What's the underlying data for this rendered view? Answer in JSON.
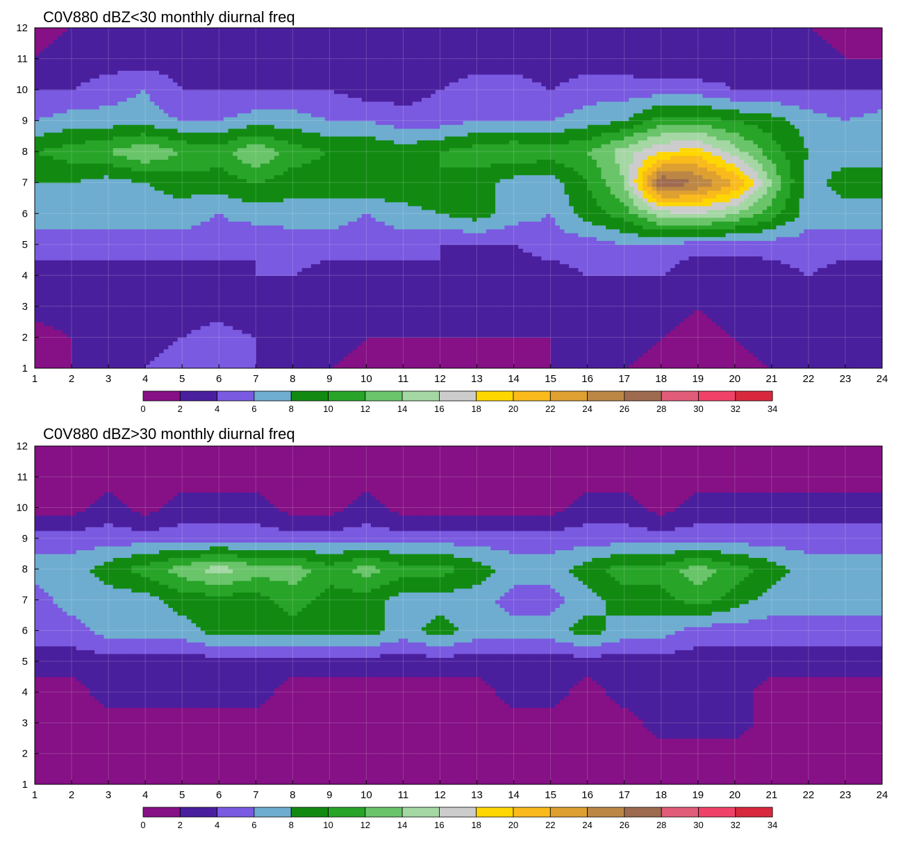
{
  "chart_data": [
    {
      "type": "heatmap",
      "subtype": "filled-contour",
      "title": "C0V880 dBZ<30 monthly diurnal freq",
      "xlabel": "",
      "ylabel": "",
      "xlim": [
        1,
        24
      ],
      "ylim": [
        1,
        12
      ],
      "x_ticks": [
        "1",
        "2",
        "3",
        "4",
        "5",
        "6",
        "7",
        "8",
        "9",
        "10",
        "11",
        "12",
        "13",
        "14",
        "15",
        "16",
        "17",
        "18",
        "19",
        "20",
        "21",
        "22",
        "23",
        "24"
      ],
      "y_ticks": [
        "1",
        "2",
        "3",
        "4",
        "5",
        "6",
        "7",
        "8",
        "9",
        "10",
        "11",
        "12"
      ],
      "grid": true,
      "colorbar": {
        "placement": "bottom",
        "levels": [
          "0",
          "2",
          "4",
          "6",
          "8",
          "10",
          "12",
          "14",
          "16",
          "18",
          "20",
          "22",
          "24",
          "26",
          "28",
          "30",
          "32",
          "34"
        ],
        "colors": [
          "#861085",
          "#4a1f9d",
          "#7a5ae0",
          "#6eadd0",
          "#128a12",
          "#28a428",
          "#6ac46a",
          "#a4d7a4",
          "#cccccc",
          "#ffd700",
          "#f9bb1c",
          "#dea031",
          "#bc8745",
          "#9e6b50",
          "#e05c78",
          "#f04268",
          "#d8283e"
        ]
      },
      "x": [
        1,
        2,
        3,
        4,
        5,
        6,
        7,
        8,
        9,
        10,
        11,
        12,
        13,
        14,
        15,
        16,
        17,
        18,
        19,
        20,
        21,
        22,
        23,
        24
      ],
      "y": [
        1,
        2,
        3,
        4,
        5,
        6,
        7,
        8,
        9,
        10,
        11,
        12
      ],
      "z": [
        [
          1,
          2,
          3,
          4,
          5,
          5,
          4,
          3,
          2,
          1,
          1,
          1,
          1,
          1,
          2,
          2,
          2,
          1,
          2,
          1,
          2,
          3,
          2,
          3
        ],
        [
          1,
          2,
          3,
          3,
          4,
          5,
          4,
          3,
          3,
          2,
          2,
          2,
          2,
          2,
          2,
          3,
          3,
          2,
          1,
          2,
          3,
          3,
          2,
          3
        ],
        [
          3,
          3,
          2,
          3,
          3,
          3,
          2,
          3,
          3,
          2,
          2,
          2,
          2,
          3,
          3,
          3,
          2,
          3,
          2,
          3,
          2,
          4,
          3,
          3
        ],
        [
          3,
          3,
          3,
          3,
          3,
          3,
          4,
          4,
          3,
          3,
          3,
          4,
          3,
          3,
          3,
          4,
          4,
          4,
          2,
          2,
          3,
          4,
          3,
          3
        ],
        [
          5,
          5,
          5,
          5,
          5,
          5,
          4,
          5,
          5,
          5,
          5,
          4,
          4,
          4,
          5,
          5,
          6,
          6,
          5,
          5,
          5,
          5,
          5,
          5
        ],
        [
          7,
          7,
          7,
          7,
          7,
          6,
          7,
          7,
          7,
          6,
          7,
          8,
          9,
          7,
          6,
          9,
          11,
          15,
          16,
          14,
          11,
          7,
          7,
          7
        ],
        [
          8,
          8,
          7,
          8,
          9,
          9,
          10,
          9,
          9,
          10,
          10,
          10,
          9,
          7,
          7,
          10,
          14,
          28,
          26,
          22,
          14,
          7,
          9,
          9
        ],
        [
          10,
          11,
          12,
          14,
          12,
          11,
          14,
          11,
          10,
          10,
          9,
          10,
          11,
          12,
          11,
          12,
          15,
          18,
          19,
          15,
          11,
          8,
          7,
          7
        ],
        [
          6,
          7,
          7,
          7,
          6,
          6,
          7,
          7,
          6,
          6,
          5,
          5,
          6,
          6,
          6,
          7,
          8,
          11,
          11,
          10,
          9,
          7,
          6,
          7
        ],
        [
          4,
          4,
          5,
          6,
          4,
          4,
          4,
          4,
          4,
          3,
          3,
          4,
          5,
          5,
          4,
          5,
          5,
          5,
          5,
          4,
          4,
          4,
          4,
          4
        ],
        [
          2,
          3,
          3,
          3,
          3,
          3,
          3,
          3,
          3,
          3,
          3,
          3,
          3,
          3,
          3,
          3,
          3,
          2,
          2,
          3,
          3,
          3,
          2,
          2
        ],
        [
          1,
          2,
          2,
          2,
          2,
          2,
          2,
          2,
          2,
          2,
          2,
          2,
          2,
          2,
          2,
          2,
          2,
          2,
          2,
          2,
          2,
          2,
          1,
          1
        ]
      ]
    },
    {
      "type": "heatmap",
      "subtype": "filled-contour",
      "title": "C0V880 dBZ>30 monthly diurnal freq",
      "xlabel": "",
      "ylabel": "",
      "xlim": [
        1,
        24
      ],
      "ylim": [
        1,
        12
      ],
      "x_ticks": [
        "1",
        "2",
        "3",
        "4",
        "5",
        "6",
        "7",
        "8",
        "9",
        "10",
        "11",
        "12",
        "13",
        "14",
        "15",
        "16",
        "17",
        "18",
        "19",
        "20",
        "21",
        "22",
        "23",
        "24"
      ],
      "y_ticks": [
        "1",
        "2",
        "3",
        "4",
        "5",
        "6",
        "7",
        "8",
        "9",
        "10",
        "11",
        "12"
      ],
      "grid": true,
      "colorbar": {
        "placement": "bottom",
        "levels": [
          "0",
          "2",
          "4",
          "6",
          "8",
          "10",
          "12",
          "14",
          "16",
          "18",
          "20",
          "22",
          "24",
          "26",
          "28",
          "30",
          "32",
          "34"
        ],
        "colors": [
          "#861085",
          "#4a1f9d",
          "#7a5ae0",
          "#6eadd0",
          "#128a12",
          "#28a428",
          "#6ac46a",
          "#a4d7a4",
          "#cccccc",
          "#ffd700",
          "#f9bb1c",
          "#dea031",
          "#bc8745",
          "#9e6b50",
          "#e05c78",
          "#f04268",
          "#d8283e"
        ]
      },
      "x": [
        1,
        2,
        3,
        4,
        5,
        6,
        7,
        8,
        9,
        10,
        11,
        12,
        13,
        14,
        15,
        16,
        17,
        18,
        19,
        20,
        21,
        22,
        23,
        24
      ],
      "y": [
        1,
        2,
        3,
        4,
        5,
        6,
        7,
        8,
        9,
        10,
        11,
        12
      ],
      "z": [
        [
          1,
          1,
          1,
          1,
          1,
          1,
          1,
          1,
          1,
          1,
          1,
          1,
          1,
          1,
          1,
          1,
          1,
          1,
          1,
          1,
          1,
          1,
          1,
          1
        ],
        [
          1,
          1,
          1,
          1,
          1,
          1,
          1,
          1,
          1,
          1,
          1,
          1,
          1,
          1,
          1,
          1,
          1,
          1,
          1,
          1,
          1,
          1,
          1,
          1
        ],
        [
          1,
          1,
          1,
          1,
          1,
          1,
          1,
          1,
          1,
          1,
          1,
          1,
          1,
          1,
          1,
          1,
          1,
          3,
          3,
          3,
          1,
          1,
          1,
          1
        ],
        [
          1,
          1,
          3,
          3,
          3,
          3,
          3,
          1,
          1,
          1,
          1,
          1,
          1,
          3,
          3,
          1,
          3,
          3,
          3,
          3,
          1,
          1,
          1,
          1
        ],
        [
          3,
          3,
          3,
          3,
          3,
          3,
          3,
          3,
          3,
          3,
          3,
          3,
          3,
          3,
          3,
          3,
          3,
          3,
          3,
          3,
          3,
          3,
          3,
          3
        ],
        [
          5,
          5,
          7,
          7,
          7,
          9,
          9,
          9,
          9,
          9,
          7,
          9,
          7,
          7,
          7,
          9,
          7,
          7,
          5,
          5,
          5,
          5,
          5,
          5
        ],
        [
          5,
          7,
          7,
          7,
          9,
          9,
          9,
          11,
          9,
          9,
          7,
          7,
          7,
          5,
          5,
          7,
          9,
          9,
          11,
          9,
          7,
          7,
          7,
          7
        ],
        [
          7,
          7,
          9,
          11,
          13,
          15,
          13,
          13,
          11,
          13,
          11,
          11,
          9,
          7,
          7,
          9,
          11,
          11,
          13,
          11,
          9,
          7,
          7,
          7
        ],
        [
          5,
          5,
          5,
          5,
          5,
          5,
          5,
          5,
          5,
          5,
          5,
          5,
          5,
          5,
          5,
          5,
          5,
          5,
          5,
          5,
          5,
          5,
          5,
          5
        ],
        [
          1,
          1,
          3,
          1,
          3,
          3,
          3,
          1,
          1,
          3,
          1,
          1,
          1,
          1,
          1,
          3,
          3,
          1,
          3,
          3,
          3,
          3,
          3,
          3
        ],
        [
          1,
          1,
          1,
          1,
          1,
          1,
          1,
          1,
          1,
          1,
          1,
          1,
          1,
          1,
          1,
          1,
          1,
          1,
          1,
          1,
          1,
          1,
          1,
          1
        ],
        [
          1,
          1,
          1,
          1,
          1,
          1,
          1,
          1,
          1,
          1,
          1,
          1,
          1,
          1,
          1,
          1,
          1,
          1,
          1,
          1,
          1,
          1,
          1,
          1
        ]
      ]
    }
  ]
}
